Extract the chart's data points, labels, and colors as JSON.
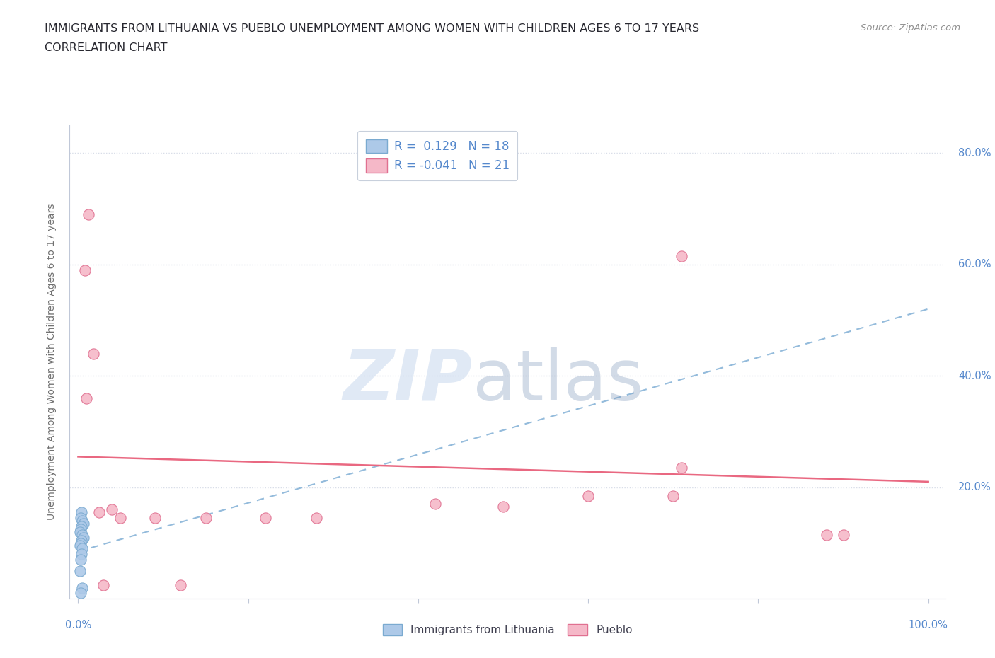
{
  "title": "IMMIGRANTS FROM LITHUANIA VS PUEBLO UNEMPLOYMENT AMONG WOMEN WITH CHILDREN AGES 6 TO 17 YEARS",
  "subtitle": "CORRELATION CHART",
  "source": "Source: ZipAtlas.com",
  "ylabel": "Unemployment Among Women with Children Ages 6 to 17 years",
  "legend_r1": "R =  0.129   N = 18",
  "legend_r2": "R = -0.041   N = 21",
  "xlim": [
    0.0,
    1.0
  ],
  "ylim": [
    0.0,
    0.85
  ],
  "yticks": [
    0.2,
    0.4,
    0.6,
    0.8
  ],
  "yticklabels": [
    "20.0%",
    "40.0%",
    "60.0%",
    "80.0%"
  ],
  "blue_scatter": [
    [
      0.004,
      0.155
    ],
    [
      0.003,
      0.145
    ],
    [
      0.005,
      0.14
    ],
    [
      0.006,
      0.135
    ],
    [
      0.004,
      0.13
    ],
    [
      0.003,
      0.125
    ],
    [
      0.002,
      0.12
    ],
    [
      0.005,
      0.115
    ],
    [
      0.006,
      0.11
    ],
    [
      0.004,
      0.105
    ],
    [
      0.003,
      0.1
    ],
    [
      0.002,
      0.095
    ],
    [
      0.005,
      0.09
    ],
    [
      0.004,
      0.08
    ],
    [
      0.003,
      0.07
    ],
    [
      0.002,
      0.05
    ],
    [
      0.005,
      0.02
    ],
    [
      0.003,
      0.01
    ]
  ],
  "pink_scatter": [
    [
      0.012,
      0.69
    ],
    [
      0.008,
      0.59
    ],
    [
      0.018,
      0.44
    ],
    [
      0.01,
      0.36
    ],
    [
      0.025,
      0.155
    ],
    [
      0.04,
      0.16
    ],
    [
      0.09,
      0.145
    ],
    [
      0.15,
      0.145
    ],
    [
      0.28,
      0.145
    ],
    [
      0.5,
      0.165
    ],
    [
      0.7,
      0.185
    ],
    [
      0.71,
      0.235
    ],
    [
      0.71,
      0.615
    ],
    [
      0.88,
      0.115
    ],
    [
      0.9,
      0.115
    ],
    [
      0.05,
      0.145
    ],
    [
      0.03,
      0.025
    ],
    [
      0.12,
      0.025
    ],
    [
      0.22,
      0.145
    ],
    [
      0.42,
      0.17
    ],
    [
      0.6,
      0.185
    ]
  ],
  "blue_line_x": [
    0.0,
    1.0
  ],
  "blue_line_y": [
    0.085,
    0.52
  ],
  "pink_line_x": [
    0.0,
    1.0
  ],
  "pink_line_y": [
    0.255,
    0.21
  ],
  "blue_color": "#adc9e8",
  "blue_edge_color": "#7aaad0",
  "pink_color": "#f5b8c8",
  "pink_edge_color": "#e07090",
  "blue_line_color": "#88b4d8",
  "pink_line_color": "#e8607a",
  "grid_color": "#d8dde8",
  "axis_label_color": "#5588cc",
  "ylabel_color": "#707070",
  "title_color": "#282830",
  "source_color": "#909090",
  "background_color": "#ffffff"
}
